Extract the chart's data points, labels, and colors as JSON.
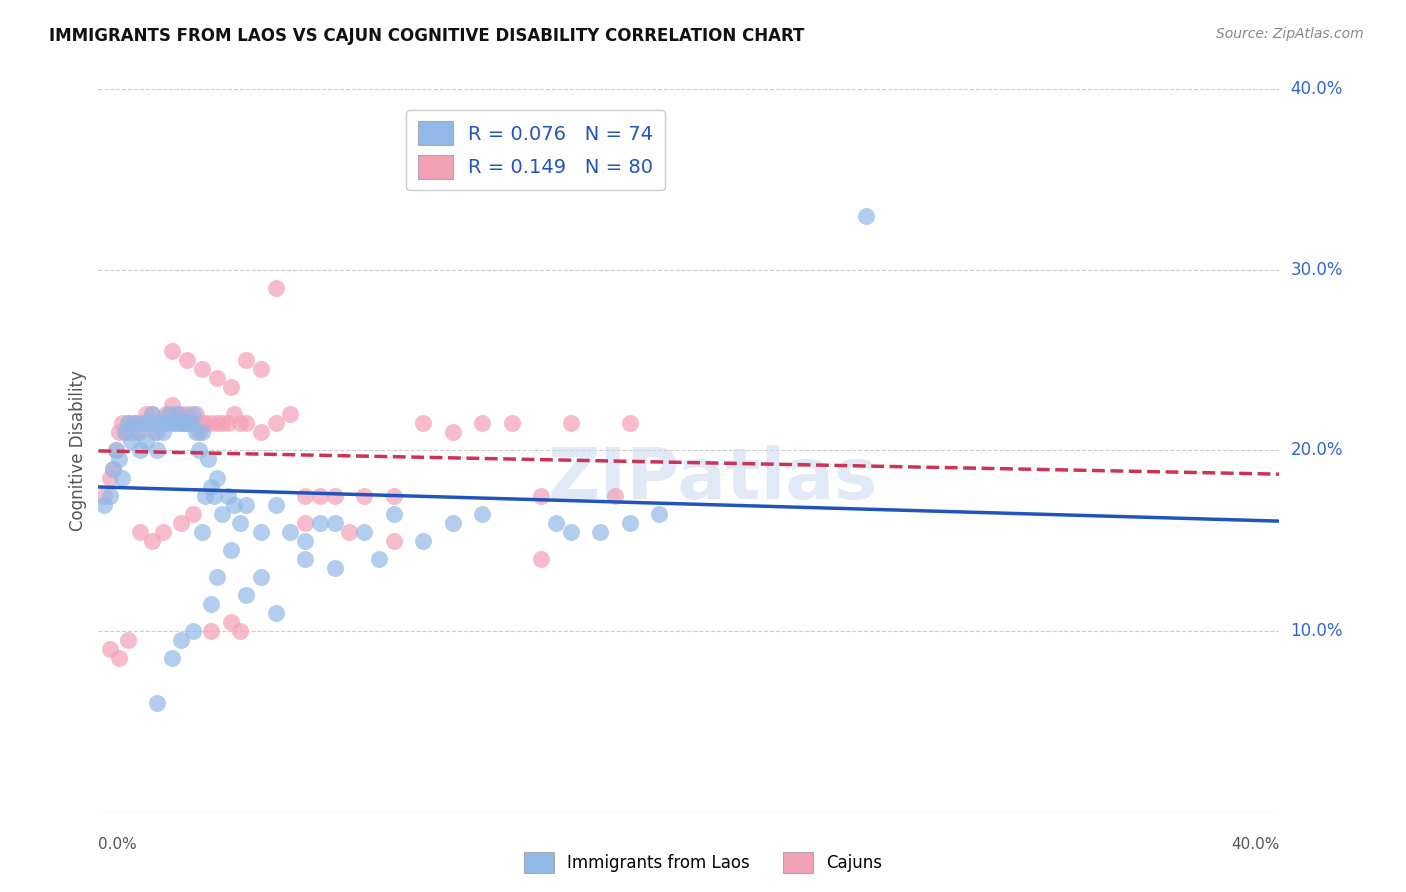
{
  "title": "IMMIGRANTS FROM LAOS VS CAJUN COGNITIVE DISABILITY CORRELATION CHART",
  "source": "Source: ZipAtlas.com",
  "ylabel": "Cognitive Disability",
  "xmin": 0.0,
  "xmax": 0.4,
  "ymin": 0.0,
  "ymax": 0.4,
  "color_blue": "#92b8e8",
  "color_pink": "#f4a0b5",
  "line_color_blue": "#2255bb",
  "line_color_pink": "#cc3355",
  "watermark": "ZIPatlas",
  "blue_x": [
    0.002,
    0.004,
    0.005,
    0.006,
    0.007,
    0.008,
    0.009,
    0.01,
    0.011,
    0.012,
    0.013,
    0.014,
    0.015,
    0.016,
    0.017,
    0.018,
    0.019,
    0.02,
    0.021,
    0.022,
    0.023,
    0.024,
    0.025,
    0.026,
    0.027,
    0.028,
    0.029,
    0.03,
    0.031,
    0.032,
    0.033,
    0.034,
    0.035,
    0.036,
    0.037,
    0.038,
    0.039,
    0.04,
    0.042,
    0.044,
    0.046,
    0.048,
    0.05,
    0.055,
    0.06,
    0.065,
    0.07,
    0.075,
    0.08,
    0.09,
    0.1,
    0.11,
    0.12,
    0.13,
    0.26,
    0.155,
    0.16,
    0.17,
    0.18,
    0.19,
    0.07,
    0.08,
    0.095,
    0.04,
    0.05,
    0.06,
    0.035,
    0.045,
    0.055,
    0.038,
    0.028,
    0.032,
    0.025,
    0.02
  ],
  "blue_y": [
    0.17,
    0.175,
    0.19,
    0.2,
    0.195,
    0.185,
    0.21,
    0.215,
    0.205,
    0.215,
    0.21,
    0.2,
    0.215,
    0.205,
    0.215,
    0.22,
    0.21,
    0.2,
    0.215,
    0.21,
    0.215,
    0.22,
    0.215,
    0.215,
    0.22,
    0.215,
    0.215,
    0.215,
    0.215,
    0.22,
    0.21,
    0.2,
    0.21,
    0.175,
    0.195,
    0.18,
    0.175,
    0.185,
    0.165,
    0.175,
    0.17,
    0.16,
    0.17,
    0.155,
    0.17,
    0.155,
    0.15,
    0.16,
    0.16,
    0.155,
    0.165,
    0.15,
    0.16,
    0.165,
    0.33,
    0.16,
    0.155,
    0.155,
    0.16,
    0.165,
    0.14,
    0.135,
    0.14,
    0.13,
    0.12,
    0.11,
    0.155,
    0.145,
    0.13,
    0.115,
    0.095,
    0.1,
    0.085,
    0.06
  ],
  "pink_x": [
    0.002,
    0.004,
    0.005,
    0.006,
    0.007,
    0.008,
    0.009,
    0.01,
    0.011,
    0.012,
    0.013,
    0.014,
    0.015,
    0.016,
    0.017,
    0.018,
    0.019,
    0.02,
    0.021,
    0.022,
    0.023,
    0.024,
    0.025,
    0.026,
    0.027,
    0.028,
    0.029,
    0.03,
    0.031,
    0.032,
    0.033,
    0.034,
    0.035,
    0.036,
    0.038,
    0.04,
    0.042,
    0.044,
    0.046,
    0.048,
    0.05,
    0.055,
    0.06,
    0.065,
    0.07,
    0.075,
    0.08,
    0.09,
    0.1,
    0.11,
    0.12,
    0.13,
    0.14,
    0.15,
    0.16,
    0.18,
    0.025,
    0.03,
    0.035,
    0.04,
    0.045,
    0.05,
    0.055,
    0.06,
    0.032,
    0.028,
    0.022,
    0.018,
    0.014,
    0.01,
    0.007,
    0.004,
    0.045,
    0.038,
    0.048,
    0.07,
    0.085,
    0.1,
    0.15,
    0.175
  ],
  "pink_y": [
    0.175,
    0.185,
    0.19,
    0.2,
    0.21,
    0.215,
    0.21,
    0.215,
    0.21,
    0.215,
    0.215,
    0.21,
    0.215,
    0.22,
    0.215,
    0.22,
    0.215,
    0.21,
    0.215,
    0.215,
    0.22,
    0.22,
    0.225,
    0.22,
    0.215,
    0.22,
    0.215,
    0.22,
    0.215,
    0.215,
    0.22,
    0.21,
    0.215,
    0.215,
    0.215,
    0.215,
    0.215,
    0.215,
    0.22,
    0.215,
    0.215,
    0.21,
    0.215,
    0.22,
    0.175,
    0.175,
    0.175,
    0.175,
    0.175,
    0.215,
    0.21,
    0.215,
    0.215,
    0.175,
    0.215,
    0.215,
    0.255,
    0.25,
    0.245,
    0.24,
    0.235,
    0.25,
    0.245,
    0.29,
    0.165,
    0.16,
    0.155,
    0.15,
    0.155,
    0.095,
    0.085,
    0.09,
    0.105,
    0.1,
    0.1,
    0.16,
    0.155,
    0.15,
    0.14,
    0.175
  ]
}
